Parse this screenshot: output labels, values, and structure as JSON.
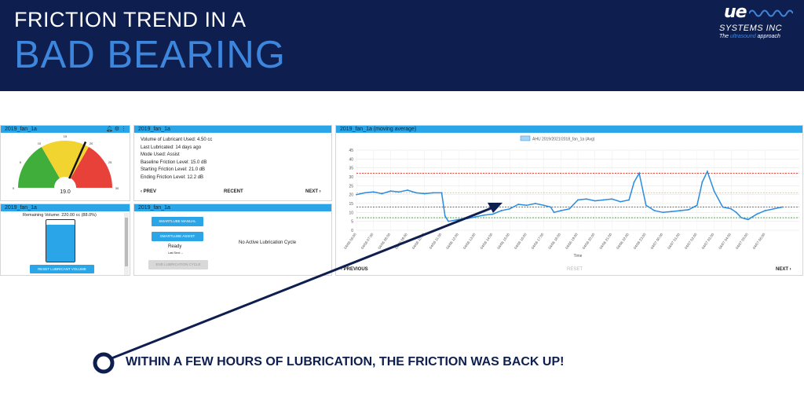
{
  "slide": {
    "title_line1": "FRICTION TREND IN A",
    "title_line2": "BAD BEARING",
    "logo_mark": "ue",
    "logo_company": "SYSTEMS INC",
    "logo_tagline_pre": "The ",
    "logo_tagline_accent": "ultrasound",
    "logo_tagline_post": " approach",
    "callout": "WITHIN A FEW HOURS OF LUBRICATION, THE FRICTION WAS BACK UP!"
  },
  "gauge_panel": {
    "title": "2019_fan_1a",
    "value": "19.0",
    "scale_labels": [
      "0",
      "5",
      "10",
      "15",
      "20",
      "25",
      "30"
    ],
    "colors": {
      "green": "#3fae3a",
      "yellow": "#f2d430",
      "red": "#e8413a"
    }
  },
  "info_panel": {
    "title": "2019_fan_1a",
    "lines": [
      "Volume of Lubricant Used: 4.50 cc",
      "Last Lubricated: 14 days ago",
      "Mode Used: Assist",
      "Baseline Friction Level: 15.0 dB",
      "Starting Friction Level: 21.0 dB",
      "Ending Friction Level: 12.2 dB"
    ],
    "prev_label": "PREV",
    "recent_label": "RECENT",
    "next_label": "NEXT"
  },
  "volume_panel": {
    "title": "2019_fan_1a",
    "remaining": "Remaining Volume: 220.00 cc (88.0%)",
    "reset_button": "RESET LUBRICANT VOLUME",
    "level_percent": 88
  },
  "lube_panel": {
    "title": "2019_fan_1a",
    "manual_button": "SMARTLUBE MANUAL",
    "assist_button": "SMARTLUBE ASSIST",
    "status": "Ready",
    "last_sent": "Last Sent: --",
    "end_button": "END LUBRICATION CYCLE",
    "no_cycle": "No Active Lubrication Cycle"
  },
  "chart_panel": {
    "title": "2019_fan_1a (moving average)",
    "previous_label": "PREVIOUS",
    "reset_label": "RESET",
    "next_label": "NEXT"
  },
  "chart_data": {
    "type": "line",
    "legend": "AHU 2019/2021/2018_fan_1a (Avg)",
    "xlabel": "Time",
    "ylabel": "",
    "ylim": [
      0,
      45
    ],
    "yticks": [
      0,
      5,
      10,
      15,
      20,
      25,
      30,
      35,
      40,
      45
    ],
    "xlim": [
      6,
      32
    ],
    "x_tick_labels": [
      "04/06 06:00",
      "04/06 07:00",
      "04/06 08:00",
      "04/06 09:00",
      "04/06 10:00",
      "04/06 11:00",
      "04/06 12:00",
      "04/06 13:00",
      "04/06 14:00",
      "04/06 15:00",
      "04/06 16:00",
      "04/06 17:00",
      "04/06 18:00",
      "04/06 19:00",
      "04/06 20:00",
      "04/06 21:00",
      "04/06 22:00",
      "04/06 23:00",
      "04/07 00:00",
      "04/07 01:00",
      "04/07 02:00",
      "04/07 03:00",
      "04/07 04:00",
      "04/07 05:00",
      "04/07 06:00"
    ],
    "x_tick_hours": [
      6,
      7,
      8,
      9,
      10,
      11,
      12,
      13,
      14,
      15,
      16,
      17,
      18,
      19,
      20,
      21,
      22,
      23,
      24,
      25,
      26,
      27,
      28,
      29,
      30
    ],
    "reference_lines": [
      {
        "value": 32,
        "color": "#e8413a"
      },
      {
        "value": 21,
        "color": "#f2d430"
      },
      {
        "value": 13,
        "color": "#2b7fd4"
      },
      {
        "value": 7,
        "color": "#3fae3a"
      }
    ],
    "series": [
      {
        "color": "#2a8be0",
        "x": [
          6,
          6.5,
          7,
          7.5,
          8,
          8.5,
          9,
          9.5,
          10,
          10.5,
          11,
          11.2,
          11.4,
          12,
          12.5,
          13,
          13.5,
          14,
          14.5,
          15,
          15.5,
          16,
          16.5,
          17,
          17.4,
          17.6,
          18,
          18.5,
          19,
          19.5,
          20,
          20.5,
          21,
          21.5,
          22,
          22.3,
          22.6,
          23,
          23.5,
          24,
          24.5,
          25,
          25.5,
          26,
          26.3,
          26.6,
          27,
          27.5,
          28,
          28.3,
          28.6,
          29,
          29.5,
          30,
          30.5,
          31
        ],
        "y": [
          20,
          21,
          21.5,
          20.5,
          22,
          21.5,
          22.5,
          21,
          20.5,
          21,
          21,
          8,
          5,
          6,
          6.5,
          7.5,
          8.5,
          9,
          11,
          12,
          14.5,
          14,
          15,
          14,
          13,
          10,
          11,
          12,
          17,
          17.5,
          16.5,
          17,
          17.5,
          16,
          17,
          27,
          32,
          14,
          11,
          10,
          10.5,
          11,
          11.5,
          14,
          27,
          33,
          22,
          13,
          12,
          10,
          7,
          6,
          9,
          11,
          12,
          13
        ]
      }
    ]
  }
}
